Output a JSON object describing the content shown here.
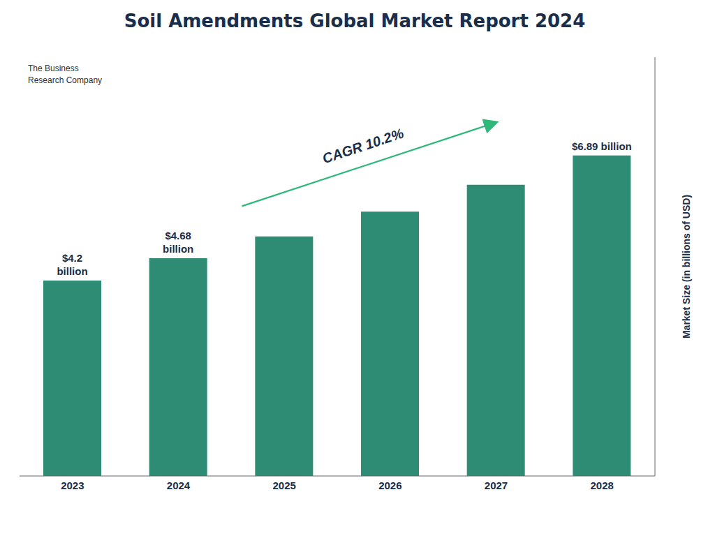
{
  "chart_data": {
    "type": "bar",
    "title": "Soil Amendments Global Market Report 2024",
    "ylabel": "Market Size (in billions of USD)",
    "categories": [
      "2023",
      "2024",
      "2025",
      "2026",
      "2027",
      "2028"
    ],
    "values": [
      4.2,
      4.68,
      5.15,
      5.68,
      6.26,
      6.89
    ],
    "value_labels": [
      "$4.2\nbillion",
      "$4.68\nbillion",
      null,
      null,
      null,
      "$6.89 billion"
    ],
    "data_labels": true,
    "color": "#2e8b74",
    "ylim": [
      0,
      9
    ],
    "tick_labels": "x",
    "grid": false,
    "annotations": [
      "CAGR 10.2%",
      "The Business\nResearch Company"
    ]
  }
}
